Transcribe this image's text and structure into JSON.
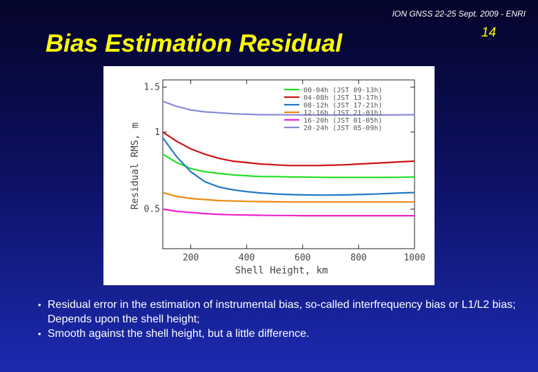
{
  "header": {
    "conference": "ION GNSS 22-25 Sept. 2009 - ENRI",
    "slide_number": "14"
  },
  "title": "Bias Estimation Residual",
  "chart_data": {
    "type": "line",
    "xlabel": "Shell Height, km",
    "ylabel": "Residual RMS, m",
    "xlim": [
      100,
      1000
    ],
    "ylim": [
      0.35,
      1.6
    ],
    "y_scale": "log",
    "x_ticks": [
      "200",
      "400",
      "600",
      "800",
      "1000"
    ],
    "x_tick_values": [
      200,
      400,
      600,
      800,
      1000
    ],
    "y_ticks": [
      "0.5",
      "1",
      "1.5"
    ],
    "y_tick_values": [
      0.5,
      1,
      1.5
    ],
    "grid": false,
    "legend_position": "top-right",
    "x": [
      100,
      150,
      200,
      250,
      300,
      350,
      400,
      450,
      500,
      550,
      600,
      650,
      700,
      750,
      800,
      850,
      900,
      950,
      1000
    ],
    "series": [
      {
        "name": "00-04h (JST 09-13h)",
        "color": "#22dd22",
        "values": [
          0.82,
          0.76,
          0.72,
          0.7,
          0.69,
          0.68,
          0.675,
          0.67,
          0.67,
          0.668,
          0.667,
          0.666,
          0.665,
          0.665,
          0.665,
          0.665,
          0.665,
          0.666,
          0.667
        ]
      },
      {
        "name": "04-08h (JST 13-17h)",
        "color": "#cc1111",
        "values": [
          1.0,
          0.92,
          0.86,
          0.82,
          0.79,
          0.77,
          0.76,
          0.75,
          0.745,
          0.74,
          0.74,
          0.74,
          0.742,
          0.745,
          0.75,
          0.755,
          0.76,
          0.765,
          0.77
        ]
      },
      {
        "name": "08-12h (JST 17-21h)",
        "color": "#1f77c4",
        "values": [
          0.95,
          0.8,
          0.7,
          0.64,
          0.61,
          0.595,
          0.585,
          0.578,
          0.573,
          0.57,
          0.568,
          0.567,
          0.567,
          0.568,
          0.57,
          0.572,
          0.575,
          0.578,
          0.58
        ]
      },
      {
        "name": "12-16h (JST 21-01h)",
        "color": "#ee8811",
        "values": [
          0.58,
          0.56,
          0.55,
          0.545,
          0.54,
          0.538,
          0.536,
          0.535,
          0.534,
          0.533,
          0.533,
          0.533,
          0.533,
          0.533,
          0.533,
          0.533,
          0.533,
          0.533,
          0.533
        ]
      },
      {
        "name": "16-20h (JST 01-05h)",
        "color": "#ee22cc",
        "values": [
          0.5,
          0.49,
          0.485,
          0.48,
          0.477,
          0.475,
          0.474,
          0.473,
          0.472,
          0.472,
          0.471,
          0.471,
          0.471,
          0.471,
          0.471,
          0.471,
          0.471,
          0.471,
          0.471
        ]
      },
      {
        "name": "20-24h (JST 05-09h)",
        "color": "#8888dd",
        "values": [
          1.32,
          1.26,
          1.22,
          1.2,
          1.19,
          1.18,
          1.175,
          1.17,
          1.17,
          1.168,
          1.167,
          1.166,
          1.166,
          1.166,
          1.166,
          1.166,
          1.167,
          1.168,
          1.17
        ]
      }
    ]
  },
  "bullets": [
    "Residual error in the estimation of instrumental bias, so-called interfrequency bias or L1/L2 bias; Depends upon the shell height;",
    "Smooth against the shell height, but a little difference."
  ]
}
